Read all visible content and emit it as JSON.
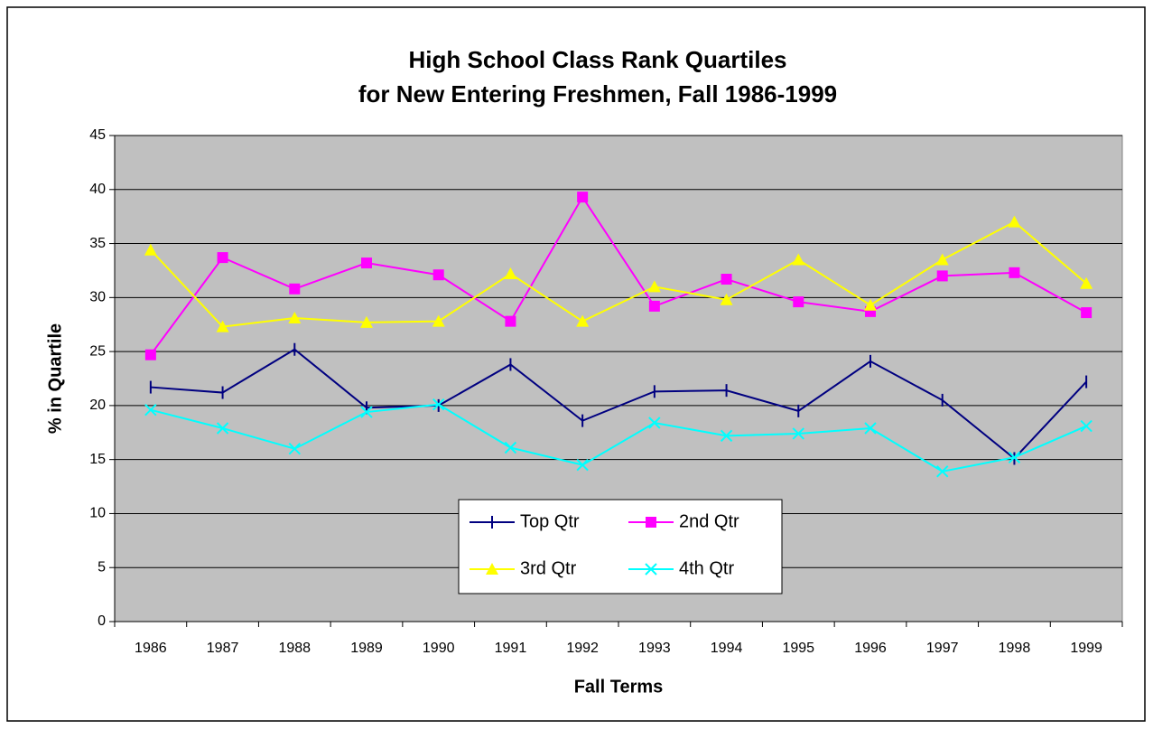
{
  "chart_data": {
    "type": "line",
    "title": [
      "High School Class Rank Quartiles",
      "for New Entering Freshmen, Fall 1986-1999"
    ],
    "x_label": "Fall Terms",
    "y_label": "% in Quartile",
    "categories": [
      "1986",
      "1987",
      "1988",
      "1989",
      "1990",
      "1991",
      "1992",
      "1993",
      "1994",
      "1995",
      "1996",
      "1997",
      "1998",
      "1999"
    ],
    "series": [
      {
        "name": "Top Qtr",
        "color": "#000080",
        "marker": "plus",
        "values": [
          21.7,
          21.2,
          25.2,
          19.8,
          20.0,
          23.8,
          18.6,
          21.3,
          21.4,
          19.5,
          24.1,
          20.5,
          15.1,
          22.2
        ]
      },
      {
        "name": "2nd Qtr",
        "color": "#ff00ff",
        "marker": "square",
        "values": [
          24.7,
          33.7,
          30.8,
          33.2,
          32.1,
          27.8,
          39.3,
          29.2,
          31.7,
          29.6,
          28.7,
          32.0,
          32.3,
          28.6
        ]
      },
      {
        "name": "3rd Qtr",
        "color": "#ffff00",
        "marker": "triangle",
        "values": [
          34.4,
          27.3,
          28.1,
          27.7,
          27.8,
          32.2,
          27.8,
          31.0,
          29.8,
          33.5,
          29.3,
          33.5,
          37.0,
          31.3
        ]
      },
      {
        "name": "4th Qtr",
        "color": "#00ffff",
        "marker": "x",
        "values": [
          19.6,
          17.9,
          16.0,
          19.4,
          20.1,
          16.1,
          14.5,
          18.4,
          17.2,
          17.4,
          17.9,
          13.9,
          15.2,
          18.1
        ]
      }
    ],
    "ylim": [
      0,
      45
    ],
    "yticks": [
      0,
      5,
      10,
      15,
      20,
      25,
      30,
      35,
      40,
      45
    ],
    "grid": true,
    "plot_background": "#c0c0c0",
    "legend": "bottom-center"
  }
}
